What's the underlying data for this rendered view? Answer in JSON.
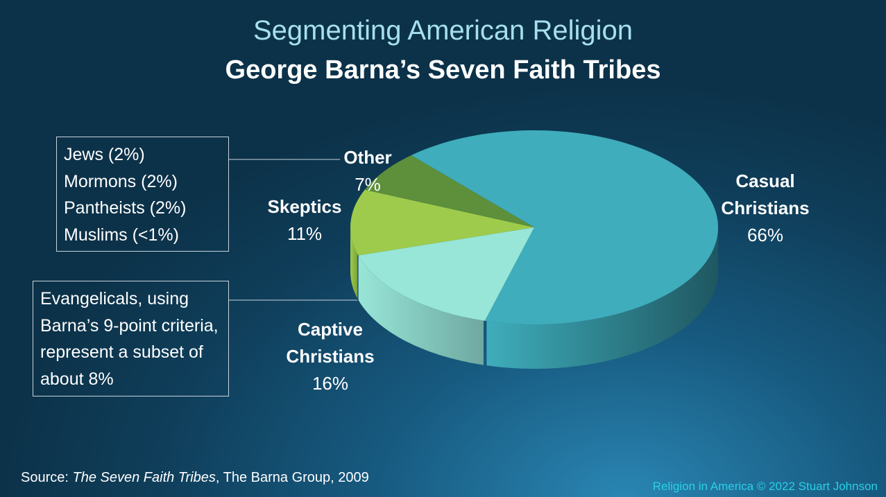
{
  "chart_data": {
    "type": "pie3d",
    "title": "Segmenting American Religion",
    "subtitle": "George Barna’s Seven Faith Tribes",
    "categories": [
      "Casual Christians",
      "Captive Christians",
      "Skeptics",
      "Other"
    ],
    "values": [
      66,
      16,
      11,
      7
    ],
    "value_labels": [
      "66%",
      "16%",
      "11%",
      "7%"
    ],
    "colors": [
      "#3fadbb",
      "#98e6d7",
      "#9ecb4b",
      "#5e8f3b"
    ],
    "side_colors": [
      "#1f5761",
      "#6fa8a0",
      "#7aa33a",
      "#466d2c"
    ],
    "annotations": {
      "other_breakdown": [
        "Jews (2%)",
        "Mormons (2%)",
        "Pantheists (2%)",
        "Muslims (<1%)"
      ],
      "evangelicals": "Evangelicals, using Barna’s 9-point criteria, represent a subset of about 8%"
    },
    "source": {
      "prefix": "Source:",
      "title": "The Seven Faith Tribes",
      "rest": ", The Barna Group, 2009"
    },
    "footer": "Religion in America © 2022 Stuart Johnson"
  }
}
